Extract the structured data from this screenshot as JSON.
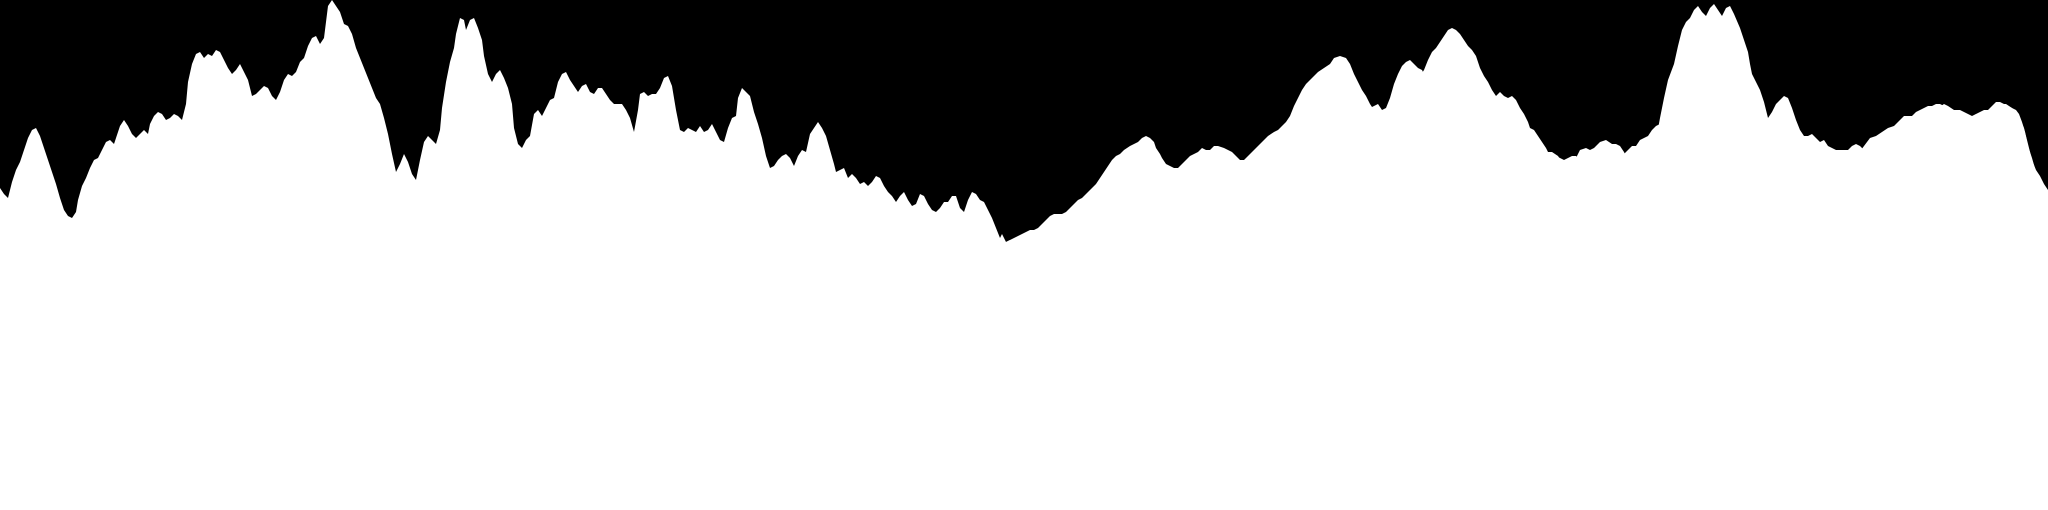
{
  "image": {
    "description_colors": {
      "sky": "#000000",
      "silhouette": "#ffffff"
    }
  }
}
